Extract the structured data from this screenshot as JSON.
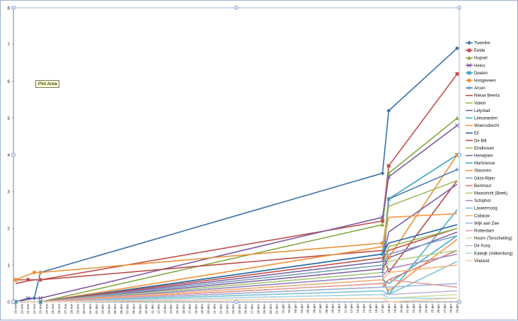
{
  "tooltip": "Plot Area",
  "chart_data": {
    "type": "line",
    "title": "",
    "xlabel": "",
    "ylabel": "",
    "ylim": [
      0,
      8
    ],
    "yticks": [
      0,
      1,
      2,
      3,
      4,
      5,
      6,
      7,
      8
    ],
    "grid": false,
    "legend": "right",
    "x_labels": [
      "19-nov",
      "20-nov",
      "21-nov",
      "22-nov",
      "23-nov",
      "24-nov",
      "25-nov",
      "26-nov",
      "27-nov",
      "28-nov",
      "29-nov",
      "30-nov",
      "01-dec",
      "02-dec",
      "03-dec",
      "04-dec",
      "05-dec",
      "06-dec",
      "07-dec",
      "08-dec",
      "09-dec",
      "10-dec",
      "11-dec",
      "12-dec",
      "13-dec",
      "14-dec",
      "15-dec",
      "16-dec",
      "17-dec",
      "18-dec",
      "19-dec",
      "20-dec",
      "21-dec",
      "22-dec",
      "23-dec",
      "24-dec",
      "25-dec",
      "26-dec",
      "27-dec",
      "28-dec",
      "29-dec",
      "30-dec",
      "31-dec",
      "01-jan",
      "02-jan",
      "03-jan",
      "04-jan",
      "05-jan",
      "06-jan",
      "07-jan",
      "08-jan",
      "09-jan",
      "10-jan",
      "11-jan",
      "12-jan",
      "13-jan",
      "14-jan",
      "15-jan",
      "16-jan",
      "17-jan",
      "18-jan",
      "19-jan",
      "20-jan",
      "21-jan",
      "22-jan",
      "23-jan",
      "24-jan",
      "25-jan",
      "26-jan",
      "27-jan",
      "28-jan",
      "29-jan"
    ],
    "series": [
      {
        "name": "Twenthe",
        "color": "#3a72a8",
        "marker": "diamond",
        "points": [
          [
            0,
            0
          ],
          [
            3,
            0.1
          ],
          [
            4,
            0.8
          ],
          [
            59,
            3.5
          ],
          [
            60,
            5.2
          ],
          [
            71,
            6.9
          ]
        ]
      },
      {
        "name": "Eelde",
        "color": "#c0504d",
        "marker": "square",
        "points": [
          [
            0,
            0.6
          ],
          [
            2,
            0.6
          ],
          [
            4,
            0.6
          ],
          [
            59,
            2.2
          ],
          [
            60,
            3.7
          ],
          [
            71,
            6.2
          ]
        ]
      },
      {
        "name": "Hupsel",
        "color": "#86a843",
        "marker": "triangle",
        "points": [
          [
            0,
            0
          ],
          [
            4,
            0
          ],
          [
            59,
            2.1
          ],
          [
            60,
            3.5
          ],
          [
            71,
            5.0
          ]
        ]
      },
      {
        "name": "Heino",
        "color": "#7e5ba0",
        "marker": "x",
        "points": [
          [
            0,
            0
          ],
          [
            2,
            0.1
          ],
          [
            4,
            0.1
          ],
          [
            59,
            2.3
          ],
          [
            60,
            3.4
          ],
          [
            71,
            4.8
          ]
        ]
      },
      {
        "name": "Deelen",
        "color": "#32a6bb",
        "marker": "star",
        "points": [
          [
            0,
            0
          ],
          [
            4,
            0
          ],
          [
            59,
            1.3
          ],
          [
            60,
            2.8
          ],
          [
            71,
            4.0
          ]
        ]
      },
      {
        "name": "Hoogeveen",
        "color": "#e8923a",
        "marker": "circle",
        "points": [
          [
            0,
            0.6
          ],
          [
            3,
            0.8
          ],
          [
            4,
            0.8
          ],
          [
            59,
            1.6
          ],
          [
            60,
            1.2
          ],
          [
            71,
            4.0
          ]
        ]
      },
      {
        "name": "Arcen",
        "color": "#4f7fba",
        "marker": "plus",
        "points": [
          [
            0,
            0
          ],
          [
            4,
            0
          ],
          [
            59,
            0.8
          ],
          [
            60,
            2.8
          ],
          [
            71,
            3.6
          ]
        ]
      },
      {
        "name": "Nieuw Beerta",
        "color": "#b84a47",
        "marker": "none",
        "points": [
          [
            0,
            0.5
          ],
          [
            3,
            0.6
          ],
          [
            4,
            0.6
          ],
          [
            59,
            1.4
          ],
          [
            60,
            0.8
          ],
          [
            71,
            3.3
          ]
        ]
      },
      {
        "name": "Volkel",
        "color": "#9bbb59",
        "marker": "none",
        "points": [
          [
            0,
            0
          ],
          [
            4,
            0
          ],
          [
            59,
            1.5
          ],
          [
            60,
            2.6
          ],
          [
            71,
            3.3
          ]
        ]
      },
      {
        "name": "Lelystad",
        "color": "#8064a2",
        "marker": "none",
        "points": [
          [
            0,
            0
          ],
          [
            4,
            0
          ],
          [
            59,
            1.1
          ],
          [
            60,
            1.9
          ],
          [
            71,
            3.2
          ]
        ]
      },
      {
        "name": "Leeuwarden",
        "color": "#4bacc6",
        "marker": "none",
        "points": [
          [
            0,
            0
          ],
          [
            4,
            0
          ],
          [
            59,
            0.7
          ],
          [
            60,
            0.2
          ],
          [
            71,
            2.5
          ]
        ]
      },
      {
        "name": "Woensdrecht",
        "color": "#f79646",
        "marker": "none",
        "points": [
          [
            0,
            0
          ],
          [
            4,
            0
          ],
          [
            59,
            1.5
          ],
          [
            60,
            2.3
          ],
          [
            71,
            2.4
          ]
        ]
      },
      {
        "name": "Eil",
        "color": "#2c6aa3",
        "marker": "none",
        "points": [
          [
            0,
            0
          ],
          [
            4,
            0
          ],
          [
            59,
            1.3
          ],
          [
            60,
            1.6
          ],
          [
            71,
            2.1
          ]
        ]
      },
      {
        "name": "De Bilt",
        "color": "#c0504d",
        "marker": "none",
        "points": [
          [
            0,
            0
          ],
          [
            4,
            0
          ],
          [
            59,
            1.2
          ],
          [
            60,
            1.4
          ],
          [
            71,
            2.0
          ]
        ]
      },
      {
        "name": "Eindhoven",
        "color": "#9bbb59",
        "marker": "none",
        "points": [
          [
            0,
            0
          ],
          [
            4,
            0
          ],
          [
            59,
            1.0
          ],
          [
            60,
            1.5
          ],
          [
            71,
            2.0
          ]
        ]
      },
      {
        "name": "Herwijnen",
        "color": "#8064a2",
        "marker": "none",
        "points": [
          [
            0,
            0
          ],
          [
            4,
            0
          ],
          [
            59,
            0.9
          ],
          [
            60,
            1.2
          ],
          [
            71,
            1.9
          ]
        ]
      },
      {
        "name": "Marknesse",
        "color": "#4bacc6",
        "marker": "none",
        "points": [
          [
            0,
            0
          ],
          [
            4,
            0
          ],
          [
            59,
            0.6
          ],
          [
            60,
            0.5
          ],
          [
            71,
            1.8
          ]
        ]
      },
      {
        "name": "Stavoren",
        "color": "#f79646",
        "marker": "none",
        "points": [
          [
            0,
            0
          ],
          [
            4,
            0
          ],
          [
            59,
            0.5
          ],
          [
            60,
            0.3
          ],
          [
            71,
            1.7
          ]
        ]
      },
      {
        "name": "Gilze-Rijen",
        "color": "#7ea1cc",
        "marker": "none",
        "points": [
          [
            0,
            0
          ],
          [
            4,
            0
          ],
          [
            59,
            1.0
          ],
          [
            60,
            1.3
          ],
          [
            71,
            1.8
          ]
        ]
      },
      {
        "name": "Berkhout",
        "color": "#d17a78",
        "marker": "none",
        "points": [
          [
            0,
            0
          ],
          [
            4,
            0
          ],
          [
            59,
            0.4
          ],
          [
            60,
            0.6
          ],
          [
            71,
            1.4
          ]
        ]
      },
      {
        "name": "Maastricht (Beek)",
        "color": "#b3cf7f",
        "marker": "none",
        "points": [
          [
            0,
            0
          ],
          [
            4,
            0
          ],
          [
            59,
            0.8
          ],
          [
            60,
            1.1
          ],
          [
            71,
            1.4
          ]
        ]
      },
      {
        "name": "Schiphol",
        "color": "#a58dc0",
        "marker": "none",
        "points": [
          [
            0,
            0
          ],
          [
            4,
            0
          ],
          [
            59,
            0.7
          ],
          [
            60,
            0.9
          ],
          [
            71,
            1.3
          ]
        ]
      },
      {
        "name": "Lauwersoog",
        "color": "#7dc4d6",
        "marker": "none",
        "points": [
          [
            0,
            0
          ],
          [
            4,
            0
          ],
          [
            59,
            0.3
          ],
          [
            60,
            0.2
          ],
          [
            71,
            1.1
          ]
        ]
      },
      {
        "name": "Cabauw",
        "color": "#fab27c",
        "marker": "none",
        "points": [
          [
            0,
            0
          ],
          [
            4,
            0
          ],
          [
            59,
            0.6
          ],
          [
            60,
            0.8
          ],
          [
            71,
            1.0
          ]
        ]
      },
      {
        "name": "Wijk aan Zee",
        "color": "#9db9dc",
        "marker": "none",
        "points": [
          [
            0,
            0
          ],
          [
            4,
            0
          ],
          [
            59,
            0.4
          ],
          [
            60,
            0.4
          ],
          [
            71,
            0.5
          ]
        ]
      },
      {
        "name": "Rotterdam",
        "color": "#e09d9b",
        "marker": "none",
        "points": [
          [
            0,
            0
          ],
          [
            4,
            0
          ],
          [
            59,
            0.5
          ],
          [
            60,
            0.6
          ],
          [
            71,
            0.4
          ]
        ]
      },
      {
        "name": "Hoorn (Terschelling)",
        "color": "#cde0a8",
        "marker": "none",
        "points": [
          [
            0,
            0
          ],
          [
            4,
            0
          ],
          [
            59,
            0.1
          ],
          [
            60,
            0.1
          ],
          [
            71,
            0.2
          ]
        ]
      },
      {
        "name": "De Kooy",
        "color": "#c5b5d8",
        "marker": "none",
        "points": [
          [
            0,
            0
          ],
          [
            4,
            0
          ],
          [
            59,
            0.2
          ],
          [
            60,
            0.2
          ],
          [
            71,
            0.3
          ]
        ]
      },
      {
        "name": "Katwijk (Valkenburg)",
        "color": "#a8d9e5",
        "marker": "none",
        "points": [
          [
            0,
            0
          ],
          [
            4,
            0
          ],
          [
            59,
            0.2
          ],
          [
            60,
            0.1
          ],
          [
            71,
            0.1
          ]
        ]
      },
      {
        "name": "Vlieland",
        "color": "#fcd0ac",
        "marker": "none",
        "points": [
          [
            0,
            0
          ],
          [
            4,
            0
          ],
          [
            59,
            0.1
          ],
          [
            60,
            0.0
          ],
          [
            71,
            0.1
          ]
        ]
      }
    ]
  }
}
